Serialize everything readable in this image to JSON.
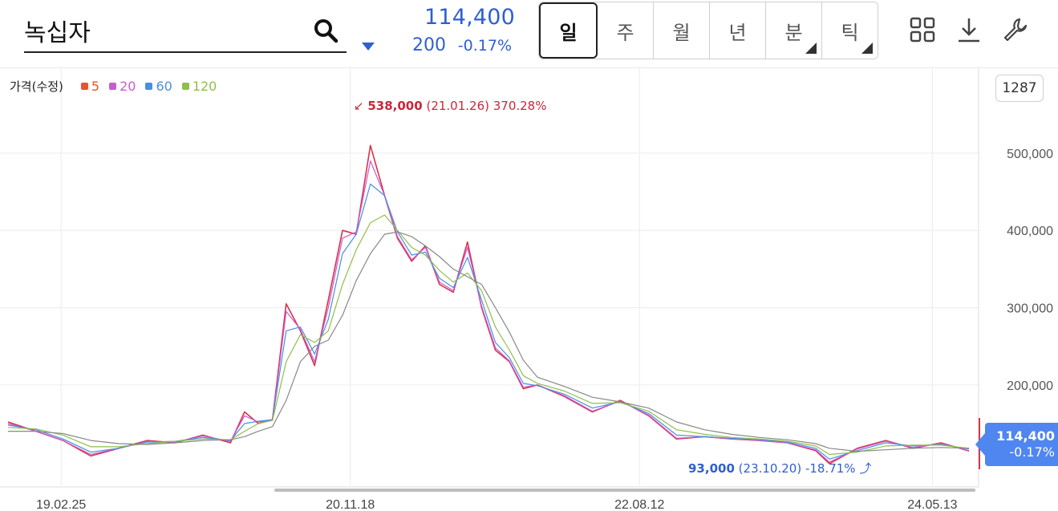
{
  "header": {
    "search_value": "녹십자",
    "price": "114,400",
    "change": "200",
    "change_pct": "-0.17%",
    "tabs": [
      {
        "label": "일",
        "active": true,
        "corner": false
      },
      {
        "label": "주",
        "active": false,
        "corner": false
      },
      {
        "label": "월",
        "active": false,
        "corner": false
      },
      {
        "label": "년",
        "active": false,
        "corner": false
      },
      {
        "label": "분",
        "active": false,
        "corner": true
      },
      {
        "label": "틱",
        "active": false,
        "corner": true
      }
    ],
    "icons": [
      "search-icon",
      "caret-down-icon",
      "grid-icon",
      "download-icon",
      "wrench-icon"
    ]
  },
  "legend": {
    "title": "가격(수정)",
    "items": [
      {
        "label": "5",
        "color": "#e8542c"
      },
      {
        "label": "20",
        "color": "#c85ad2"
      },
      {
        "label": "60",
        "color": "#4a8fe0"
      },
      {
        "label": "120",
        "color": "#8fbf4a"
      }
    ]
  },
  "candle_count": "1287",
  "annotations": {
    "high_value": "538,000",
    "high_rest": "(21.01.26) 370.28%",
    "low_value": "93,000",
    "low_rest": "(23.10.20) -18.71%"
  },
  "price_tag": {
    "value": "114,400",
    "pct": "-0.17%"
  },
  "colors": {
    "up": "#e0263c",
    "down": "#2f5fd0",
    "grid": "#ececec"
  },
  "chart_data": {
    "type": "line",
    "title": "",
    "ylabel": "",
    "xlabel": "",
    "ylim": [
      70000,
      610000
    ],
    "yticks": [
      {
        "value": 200000,
        "label": "200,000"
      },
      {
        "value": 300000,
        "label": "300,000"
      },
      {
        "value": 400000,
        "label": "400,000"
      },
      {
        "value": 500000,
        "label": "500,000"
      }
    ],
    "xticks": [
      {
        "label": "19.02.25",
        "date": "2019-02-25"
      },
      {
        "label": "20.11.18",
        "date": "2020-11-18"
      },
      {
        "label": "22.08.12",
        "date": "2022-08-12"
      },
      {
        "label": "24.05.13",
        "date": "2024-05-13"
      }
    ],
    "x": [
      "2018-11",
      "2019-01",
      "2019-03",
      "2019-05",
      "2019-07",
      "2019-09",
      "2019-11",
      "2020-01",
      "2020-03",
      "2020-04",
      "2020-05",
      "2020-06",
      "2020-07",
      "2020-08",
      "2020-09",
      "2020-10",
      "2020-11",
      "2020-12",
      "2021-01",
      "2021-02",
      "2021-03",
      "2021-04",
      "2021-05",
      "2021-06",
      "2021-07",
      "2021-08",
      "2021-09",
      "2021-10",
      "2021-11",
      "2021-12",
      "2022-01",
      "2022-03",
      "2022-05",
      "2022-07",
      "2022-09",
      "2022-11",
      "2023-01",
      "2023-03",
      "2023-05",
      "2023-07",
      "2023-09",
      "2023-10",
      "2023-12",
      "2024-02",
      "2024-04",
      "2024-06",
      "2024-08"
    ],
    "series": [
      {
        "name": "가격(수정)",
        "values": [
          152000,
          140000,
          128000,
          108000,
          118000,
          128000,
          125000,
          135000,
          125000,
          165000,
          150000,
          155000,
          305000,
          270000,
          225000,
          310000,
          400000,
          395000,
          510000,
          445000,
          390000,
          360000,
          380000,
          330000,
          320000,
          385000,
          300000,
          245000,
          230000,
          195000,
          200000,
          185000,
          165000,
          180000,
          160000,
          130000,
          133000,
          130000,
          128000,
          125000,
          115000,
          98000,
          118000,
          128000,
          118000,
          125000,
          114400
        ]
      },
      {
        "name": "5",
        "values": [
          150000,
          140000,
          128000,
          110000,
          118000,
          127000,
          126000,
          134000,
          127000,
          160000,
          152000,
          154000,
          295000,
          272000,
          230000,
          300000,
          390000,
          398000,
          490000,
          445000,
          392000,
          362000,
          378000,
          333000,
          322000,
          378000,
          302000,
          248000,
          231000,
          197000,
          200000,
          186000,
          166000,
          179000,
          161000,
          131000,
          133000,
          130000,
          128000,
          125000,
          116000,
          100000,
          117000,
          127000,
          119000,
          124000,
          115000
        ]
      },
      {
        "name": "20",
        "values": [
          148000,
          142000,
          130000,
          113000,
          118000,
          126000,
          127000,
          132000,
          128000,
          150000,
          153000,
          155000,
          270000,
          275000,
          240000,
          285000,
          370000,
          395000,
          460000,
          445000,
          398000,
          368000,
          372000,
          338000,
          326000,
          365000,
          310000,
          255000,
          235000,
          202000,
          199000,
          188000,
          170000,
          178000,
          163000,
          135000,
          133000,
          131000,
          129000,
          126000,
          118000,
          104000,
          115000,
          125000,
          121000,
          123000,
          117000
        ]
      },
      {
        "name": "60",
        "values": [
          145000,
          143000,
          135000,
          120000,
          120000,
          124000,
          127000,
          130000,
          129000,
          140000,
          150000,
          154000,
          230000,
          265000,
          255000,
          270000,
          330000,
          375000,
          410000,
          420000,
          400000,
          378000,
          368000,
          348000,
          333000,
          345000,
          322000,
          275000,
          245000,
          212000,
          202000,
          192000,
          176000,
          177000,
          166000,
          142000,
          136000,
          132000,
          130000,
          127000,
          121000,
          110000,
          113000,
          121000,
          122000,
          122000,
          118000
        ]
      },
      {
        "name": "120",
        "values": [
          140000,
          140000,
          137000,
          128000,
          124000,
          123000,
          125000,
          128000,
          129000,
          133000,
          140000,
          146000,
          180000,
          230000,
          250000,
          258000,
          290000,
          335000,
          370000,
          395000,
          398000,
          392000,
          380000,
          366000,
          350000,
          340000,
          330000,
          300000,
          268000,
          232000,
          210000,
          198000,
          184000,
          178000,
          170000,
          152000,
          142000,
          136000,
          132000,
          129000,
          124000,
          118000,
          114000,
          116000,
          118000,
          119000,
          118000
        ]
      }
    ],
    "legend": "top-left",
    "grid": true
  }
}
